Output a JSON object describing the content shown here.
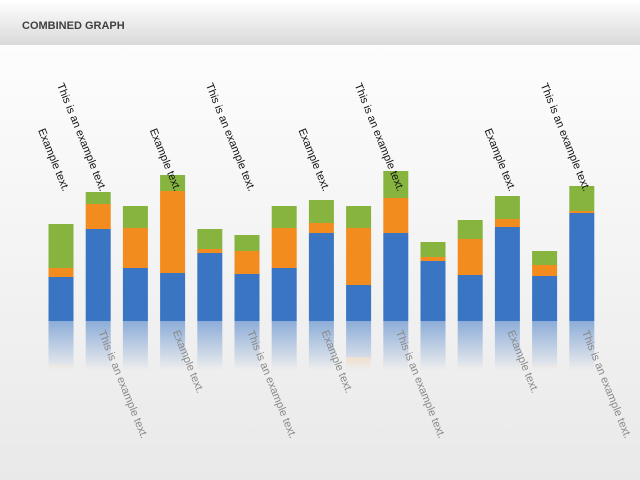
{
  "chart_data": {
    "type": "stacked-bar",
    "title": "COMBINED GRAPH",
    "categories": [
      "Example text.",
      "This is an example text.",
      null,
      "Example text.",
      null,
      "This is an example text.",
      null,
      "Example text.",
      null,
      "This is an example text.",
      null,
      null,
      "Example text.",
      null,
      "This is an example text."
    ],
    "reflection_labels": [
      null,
      "This is an example text.",
      null,
      "Example text.",
      null,
      "This is an example text.",
      null,
      "Example text.",
      null,
      "This is an example text.",
      null,
      null,
      "Example text.",
      null,
      "This is an example text."
    ],
    "series": [
      {
        "color": "#3a75c4",
        "values": [
          44,
          92,
          53,
          48,
          68,
          47,
          53,
          88,
          36,
          88,
          60,
          46,
          94,
          45,
          108
        ]
      },
      {
        "color": "#f28c1e",
        "values": [
          9,
          25,
          40,
          82,
          4,
          23,
          40,
          10,
          57,
          35,
          4,
          36,
          8,
          11,
          2
        ]
      },
      {
        "color": "#86b43e",
        "values": [
          44,
          12,
          22,
          16,
          20,
          16,
          22,
          23,
          22,
          27,
          15,
          19,
          23,
          14,
          25
        ]
      }
    ]
  }
}
